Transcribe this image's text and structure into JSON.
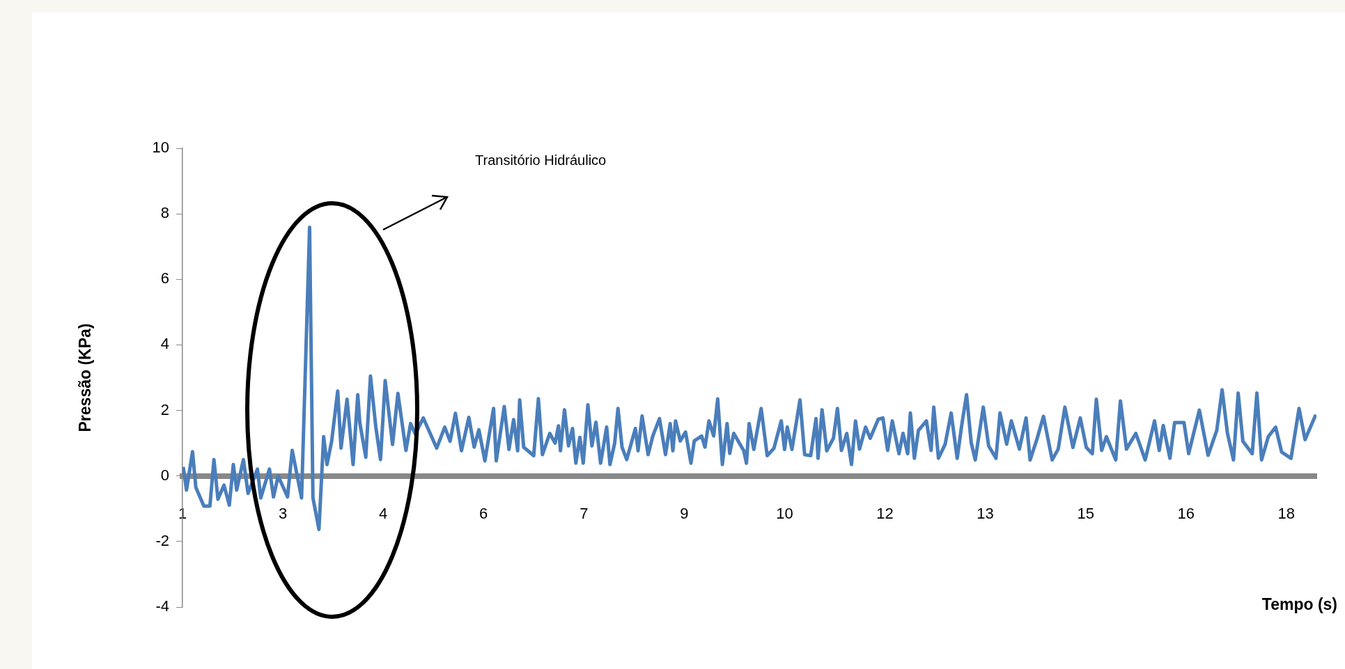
{
  "chart_data": {
    "type": "line",
    "xlabel": "Tempo (s)",
    "ylabel": "Pressão (KPa)",
    "annotations": [
      "Transitório Hidráulico"
    ],
    "xlim": [
      1,
      17.95
    ],
    "ylim": [
      -4,
      10
    ],
    "yticks": [
      -4,
      -2,
      0,
      2,
      4,
      6,
      8,
      10
    ],
    "xticks": [
      1,
      {
        "value": 2.5,
        "label": "3"
      },
      4,
      {
        "value": 5.5,
        "label": "6"
      },
      7,
      {
        "value": 8.5,
        "label": "9"
      },
      10,
      {
        "value": 11.5,
        "label": "12"
      },
      13,
      {
        "value": 14.5,
        "label": "15"
      },
      16,
      {
        "value": 17.5,
        "label": "18"
      }
    ],
    "series": [
      {
        "color": "#4a7ebb",
        "x": [
          1.01,
          1.06,
          1.15,
          1.2,
          1.32,
          1.41,
          1.47,
          1.53,
          1.62,
          1.7,
          1.76,
          1.81,
          1.91,
          1.98,
          2.12,
          2.17,
          2.3,
          2.36,
          2.43,
          2.57,
          2.64,
          2.78,
          2.9,
          2.95,
          3.04,
          3.11,
          3.16,
          3.23,
          3.32,
          3.37,
          3.46,
          3.55,
          3.62,
          3.65,
          3.74,
          3.81,
          3.89,
          3.96,
          4.03,
          4.14,
          4.22,
          4.34,
          4.41,
          4.48,
          4.6,
          4.8,
          4.92,
          5.0,
          5.08,
          5.17,
          5.28,
          5.36,
          5.43,
          5.52,
          5.65,
          5.69,
          5.81,
          5.88,
          5.95,
          6.01,
          6.04,
          6.1,
          6.25,
          6.32,
          6.38,
          6.49,
          6.57,
          6.62,
          6.65,
          6.71,
          6.77,
          6.83,
          6.88,
          6.94,
          6.99,
          7.06,
          7.12,
          7.18,
          7.25,
          7.34,
          7.39,
          7.46,
          7.51,
          7.57,
          7.64,
          7.77,
          7.81,
          7.87,
          7.96,
          8.03,
          8.13,
          8.22,
          8.29,
          8.33,
          8.37,
          8.44,
          8.52,
          8.6,
          8.65,
          8.76,
          8.81,
          8.87,
          8.94,
          9.0,
          9.07,
          9.14,
          9.18,
          9.24,
          9.39,
          9.43,
          9.47,
          9.54,
          9.65,
          9.74,
          9.84,
          9.95,
          10.0,
          10.04,
          10.11,
          10.23,
          10.3,
          10.39,
          10.47,
          10.5,
          10.56,
          10.63,
          10.73,
          10.79,
          10.85,
          10.93,
          11.0,
          11.06,
          11.12,
          11.21,
          11.28,
          11.4,
          11.47,
          11.54,
          11.61,
          11.71,
          11.77,
          11.84,
          11.88,
          11.94,
          12.0,
          12.12,
          12.19,
          12.23,
          12.3,
          12.4,
          12.49,
          12.58,
          12.65,
          12.72,
          12.79,
          12.85,
          12.97,
          13.05,
          13.16,
          13.22,
          13.32,
          13.39,
          13.51,
          13.61,
          13.67,
          13.77,
          13.87,
          14.0,
          14.09,
          14.19,
          14.31,
          14.42,
          14.51,
          14.6,
          14.66,
          14.74,
          14.81,
          14.95,
          15.02,
          15.11,
          15.25,
          15.39,
          15.53,
          15.6,
          15.66,
          15.76,
          15.83,
          15.97,
          16.04,
          16.2,
          16.33,
          16.46,
          16.54,
          16.62,
          16.71,
          16.78,
          16.85,
          16.99,
          17.06,
          17.13,
          17.23,
          17.34,
          17.43,
          17.57,
          17.69,
          17.78,
          17.94
        ],
        "values": [
          0.28,
          -0.43,
          0.74,
          -0.35,
          -0.92,
          -0.92,
          0.5,
          -0.71,
          -0.28,
          -0.89,
          0.35,
          -0.43,
          0.5,
          -0.53,
          0.21,
          -0.67,
          0.21,
          -0.64,
          0,
          -0.64,
          0.78,
          -0.67,
          7.59,
          -0.67,
          -1.63,
          1.2,
          0.35,
          1.06,
          2.59,
          0.85,
          2.34,
          0.35,
          2.48,
          1.63,
          0.57,
          3.05,
          1.49,
          0.5,
          2.91,
          0.96,
          2.52,
          0.78,
          1.6,
          1.28,
          1.77,
          0.85,
          1.49,
          1.06,
          1.91,
          0.77,
          1.79,
          0.88,
          1.41,
          0.46,
          2.06,
          0.46,
          2.12,
          0.81,
          1.72,
          0.77,
          2.32,
          0.88,
          0.62,
          2.36,
          0.65,
          1.3,
          1.0,
          1.53,
          0.77,
          2.02,
          0.92,
          1.45,
          0.39,
          1.18,
          0.39,
          2.17,
          0.92,
          1.64,
          0.39,
          1.49,
          0.35,
          1.0,
          2.06,
          0.88,
          0.5,
          1.45,
          0.77,
          1.83,
          0.65,
          1.22,
          1.75,
          0.65,
          1.6,
          0.77,
          1.68,
          1.07,
          1.34,
          0.39,
          1.07,
          1.22,
          0.88,
          1.68,
          1.22,
          2.35,
          0.35,
          1.6,
          0.69,
          1.3,
          0.77,
          0.39,
          1.6,
          0.81,
          2.06,
          0.62,
          0.84,
          1.68,
          0.81,
          1.49,
          0.81,
          2.32,
          0.65,
          0.62,
          1.75,
          0.54,
          2.02,
          0.77,
          1.15,
          2.06,
          0.78,
          1.3,
          0.35,
          1.68,
          0.82,
          1.49,
          1.15,
          1.73,
          1.77,
          0.78,
          1.68,
          0.68,
          1.3,
          0.68,
          1.92,
          0.54,
          1.39,
          1.68,
          0.78,
          2.1,
          0.54,
          0.97,
          1.92,
          0.54,
          1.58,
          2.48,
          1.01,
          0.49,
          2.1,
          0.92,
          0.54,
          1.92,
          0.97,
          1.68,
          0.82,
          1.77,
          0.49,
          1.11,
          1.82,
          0.49,
          0.82,
          2.1,
          0.87,
          1.77,
          0.87,
          0.68,
          2.34,
          0.78,
          1.2,
          0.49,
          2.29,
          0.82,
          1.3,
          0.49,
          1.68,
          0.78,
          1.54,
          0.54,
          1.63,
          1.63,
          0.68,
          2.01,
          0.63,
          1.39,
          2.63,
          1.3,
          0.49,
          2.53,
          1.06,
          0.68,
          2.53,
          0.49,
          1.2,
          1.49,
          0.73,
          0.54,
          2.06,
          1.11,
          1.87
        ]
      }
    ]
  }
}
